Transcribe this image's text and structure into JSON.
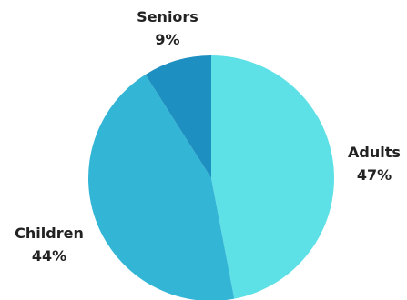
{
  "chart_data": {
    "type": "pie",
    "categories": [
      "Adults",
      "Children",
      "Seniors"
    ],
    "values": [
      47,
      44,
      9
    ],
    "percent_labels": [
      "47%",
      "44%",
      "9%"
    ],
    "colors": [
      "#5DE0E6",
      "#33B6D6",
      "#1D8FC0"
    ],
    "start_angle": "12 o'clock",
    "direction": "clockwise",
    "legend": "none",
    "labels_outside": true
  }
}
